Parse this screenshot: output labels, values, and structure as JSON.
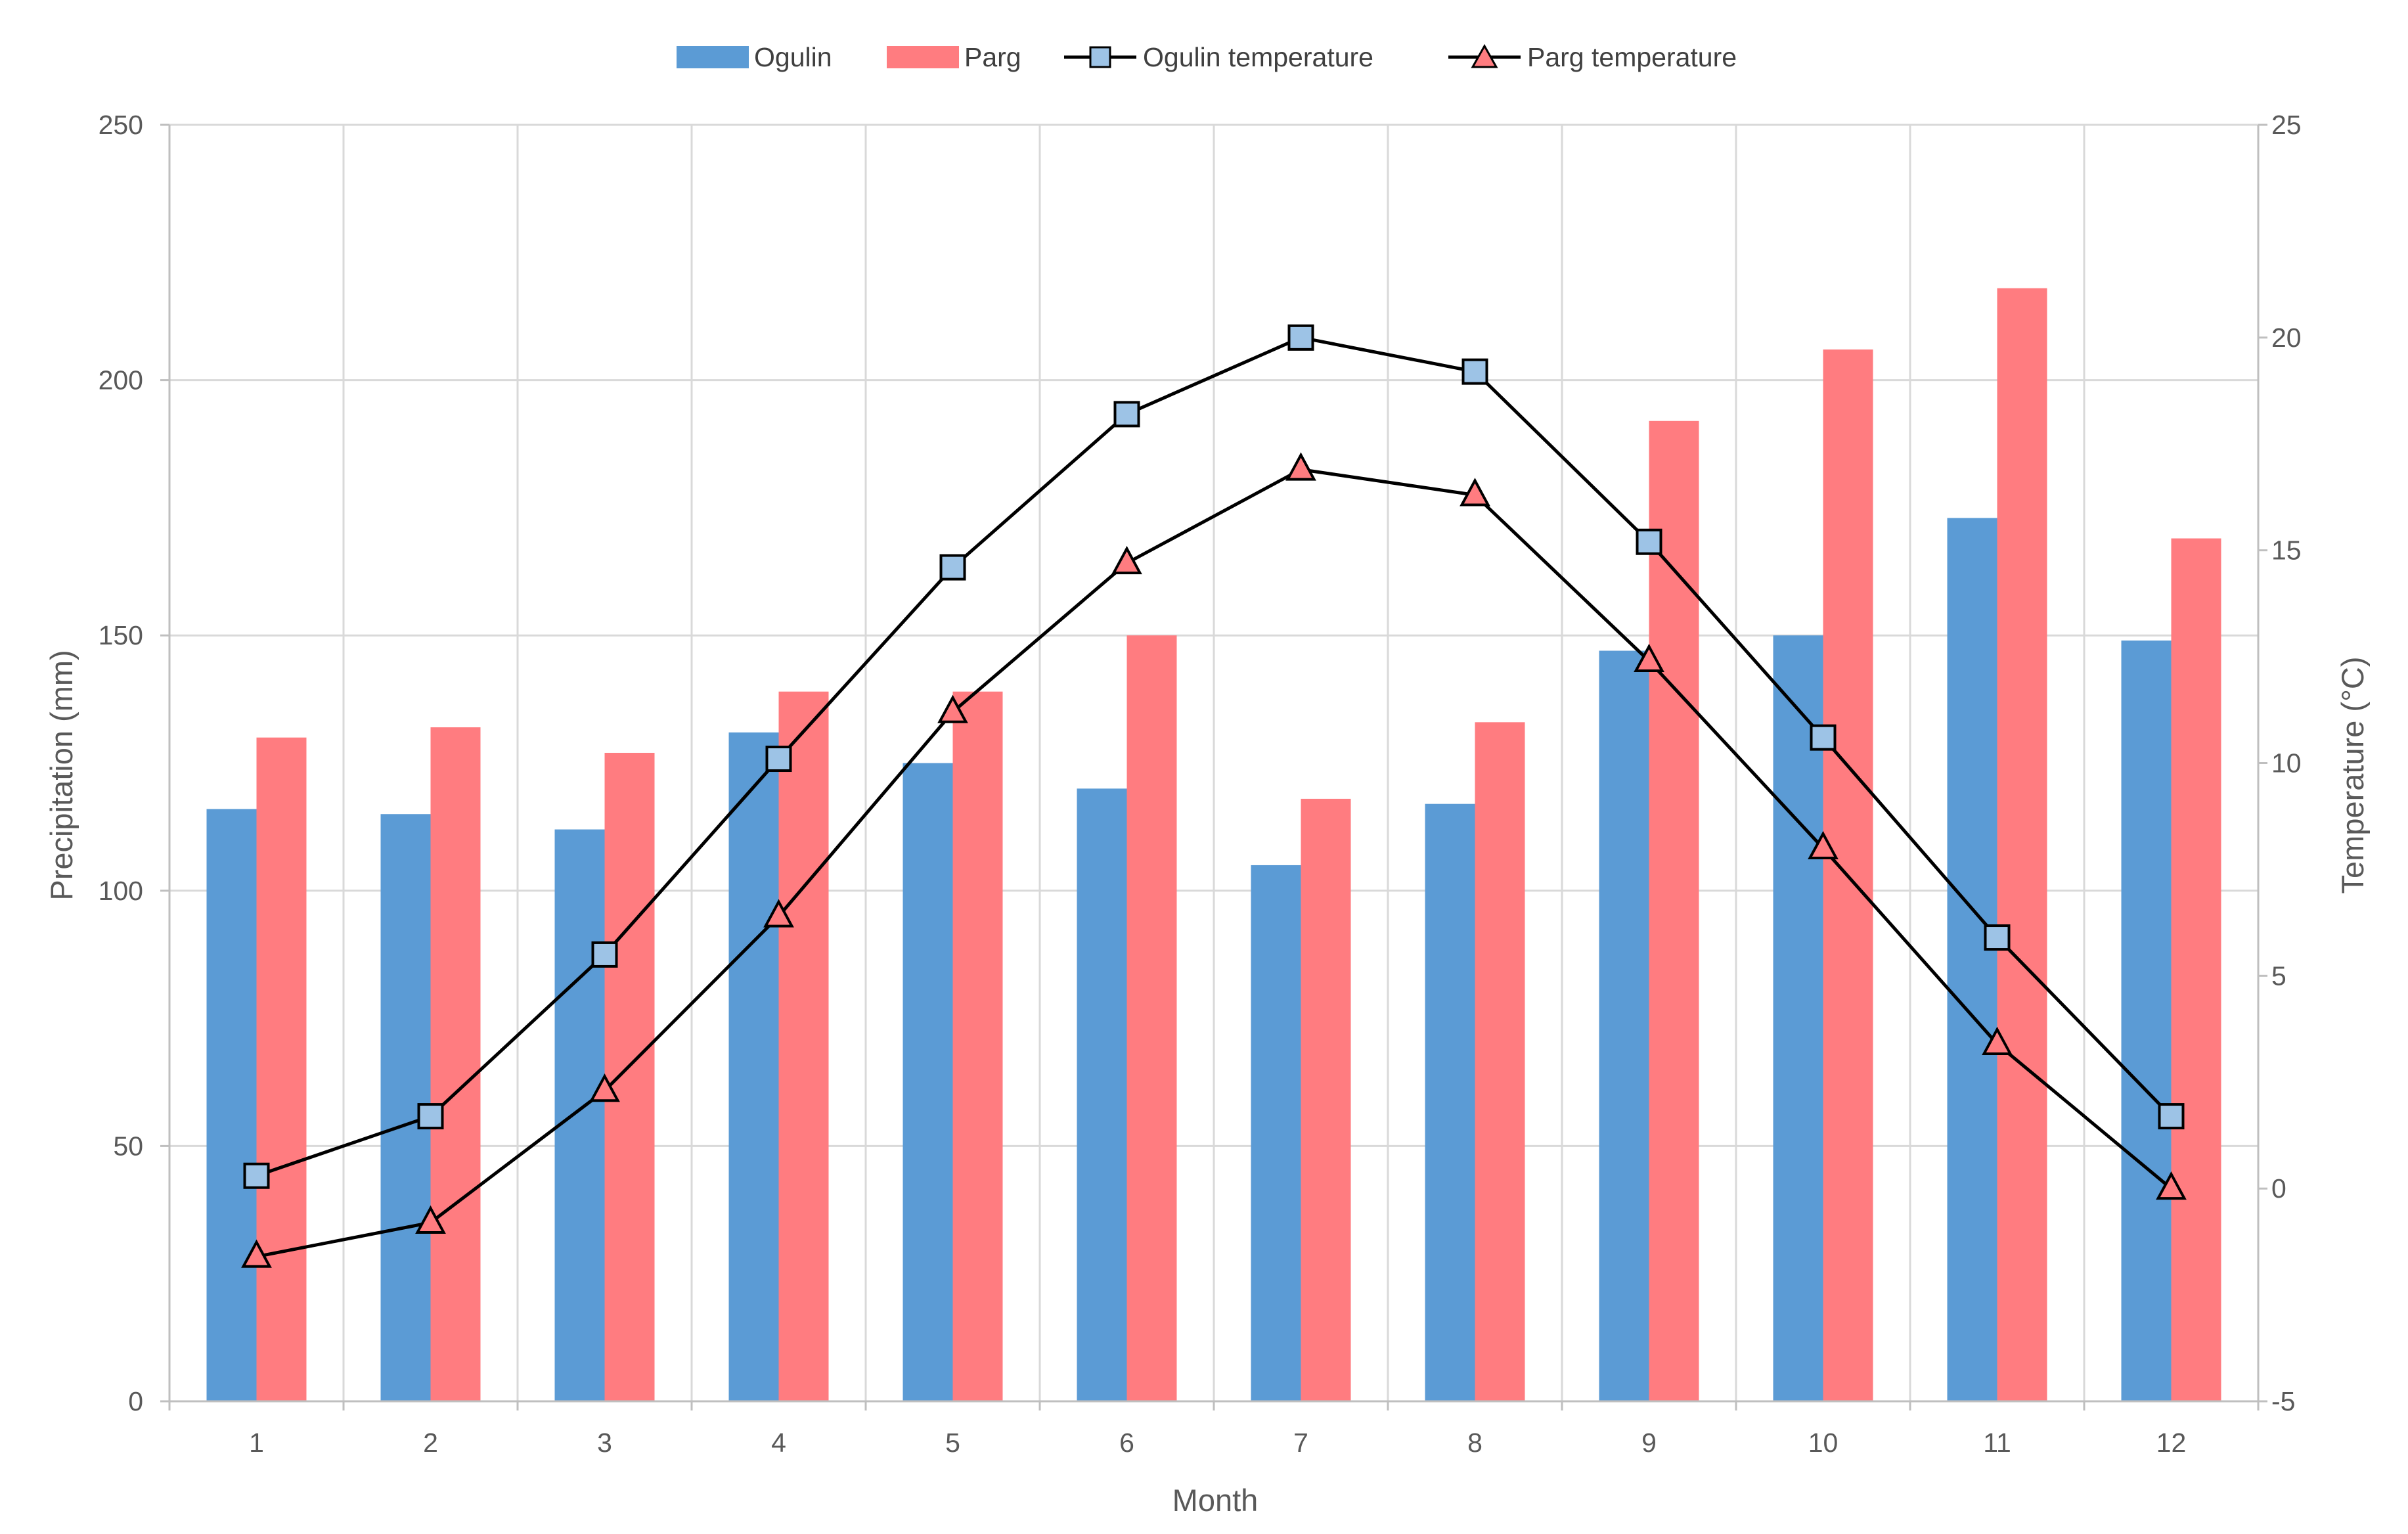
{
  "colors": {
    "ogulin_bar": "#5B9BD5",
    "parg_bar": "#FF7C80",
    "ogulin_marker": "#9DC3E6",
    "parg_marker": "#FF7C80",
    "line": "#000000",
    "grid": "#D9D9D9",
    "axis": "#BFBFBF",
    "text": "#595959"
  },
  "chart_data": {
    "type": "bar",
    "title": "",
    "xlabel": "Month",
    "ylabel": "Precipitation (mm)",
    "y2label": "Temperature (°C)",
    "categories": [
      "1",
      "2",
      "3",
      "4",
      "5",
      "6",
      "7",
      "8",
      "9",
      "10",
      "11",
      "12"
    ],
    "ylim": [
      0,
      250
    ],
    "yticks": [
      "0",
      "50",
      "100",
      "150",
      "200",
      "250"
    ],
    "y2lim": [
      -5,
      25
    ],
    "y2ticks": [
      "-5",
      "0",
      "5",
      "10",
      "15",
      "20",
      "25"
    ],
    "grid": true,
    "legend_position": "top-center",
    "series": [
      {
        "name": "Ogulin",
        "type": "bar",
        "axis": "left",
        "values": [
          116,
          115,
          112,
          131,
          125,
          120,
          105,
          117,
          147,
          150,
          173,
          149
        ]
      },
      {
        "name": "Parg",
        "type": "bar",
        "axis": "left",
        "values": [
          130,
          132,
          127,
          139,
          139,
          150,
          118,
          133,
          192,
          206,
          218,
          169
        ]
      },
      {
        "name": "Ogulin temperature",
        "type": "line",
        "marker": "square",
        "axis": "right",
        "values": [
          0.3,
          1.7,
          5.5,
          10.1,
          14.6,
          18.2,
          20.0,
          19.2,
          15.2,
          10.6,
          5.9,
          1.7
        ]
      },
      {
        "name": "Parg temperature",
        "type": "line",
        "marker": "triangle",
        "axis": "right",
        "values": [
          -1.6,
          -0.8,
          2.3,
          6.4,
          11.2,
          14.7,
          16.9,
          16.3,
          12.4,
          8.0,
          3.4,
          0.0
        ]
      }
    ]
  }
}
